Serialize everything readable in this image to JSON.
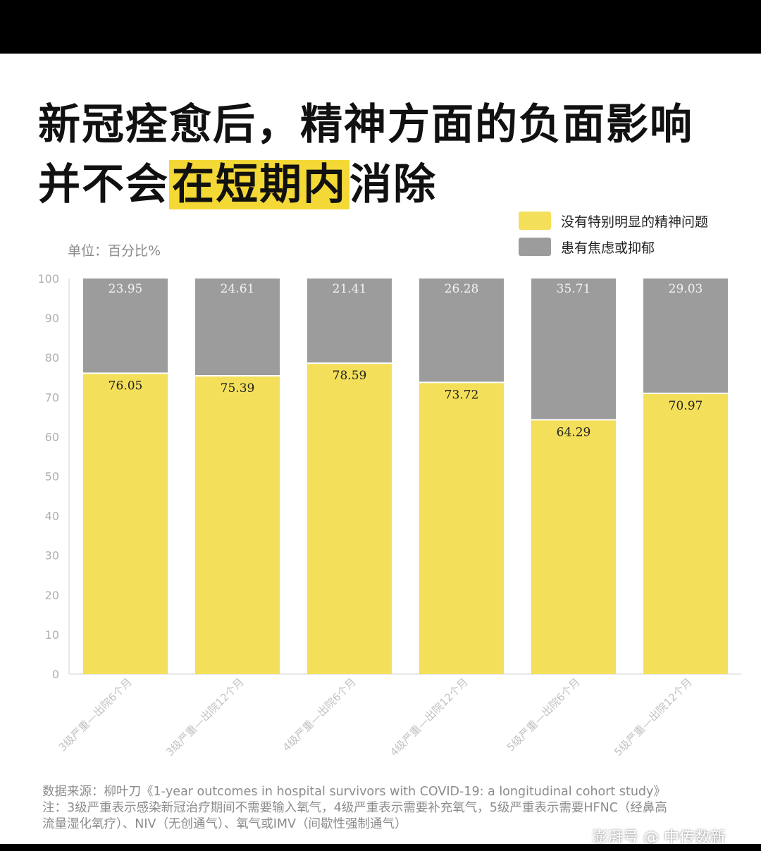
{
  "title": {
    "line1": "新冠痊愈后，精神方面的负面影响",
    "line2_pre": "并不会",
    "line2_highlight": "在短期内",
    "line2_post": "消除"
  },
  "legend": [
    {
      "label": "没有特别明显的精神问题",
      "color": "#f3df5a"
    },
    {
      "label": "患有焦虑或抑郁",
      "color": "#9c9c9c"
    }
  ],
  "unit_label": "单位：百分比%",
  "chart_data": {
    "type": "bar",
    "stacked": true,
    "categories": [
      "3级严重—出院6个月",
      "3级严重—出院12个月",
      "4级严重—出院6个月",
      "4级严重—出院12个月",
      "5级严重—出院6个月",
      "5级严重—出院12个月"
    ],
    "series": [
      {
        "name": "没有特别明显的精神问题",
        "color": "#f3df5a",
        "values": [
          76.05,
          75.39,
          78.59,
          73.72,
          64.29,
          70.97
        ],
        "labels": [
          "76.05",
          "75.39",
          "78.59",
          "73.72",
          "64.29",
          "70.97"
        ]
      },
      {
        "name": "患有焦虑或抑郁",
        "color": "#9c9c9c",
        "values": [
          23.95,
          24.61,
          21.41,
          26.28,
          35.71,
          29.03
        ],
        "labels": [
          "23.95",
          "24.61",
          "21.41",
          "26.28",
          "35.71",
          "29.03"
        ]
      }
    ],
    "ylim": [
      0,
      100
    ],
    "yticks": [
      "0",
      "10",
      "20",
      "30",
      "40",
      "50",
      "60",
      "70",
      "80",
      "90",
      "100"
    ],
    "grid": false
  },
  "notes": {
    "source": "数据来源：柳叶刀《1-year outcomes in hospital survivors with COVID-19: a longitudinal cohort study》",
    "note_line1": "注：3级严重表示感染新冠治疗期间不需要输入氧气，4级严重表示需要补充氧气，5级严重表示需要HFNC（经鼻高",
    "note_line2": "流量湿化氧疗）、NIV（无创通气）、氧气或IMV（间歇性强制通气）"
  },
  "watermark": "澎湃号 @ 中传数新"
}
